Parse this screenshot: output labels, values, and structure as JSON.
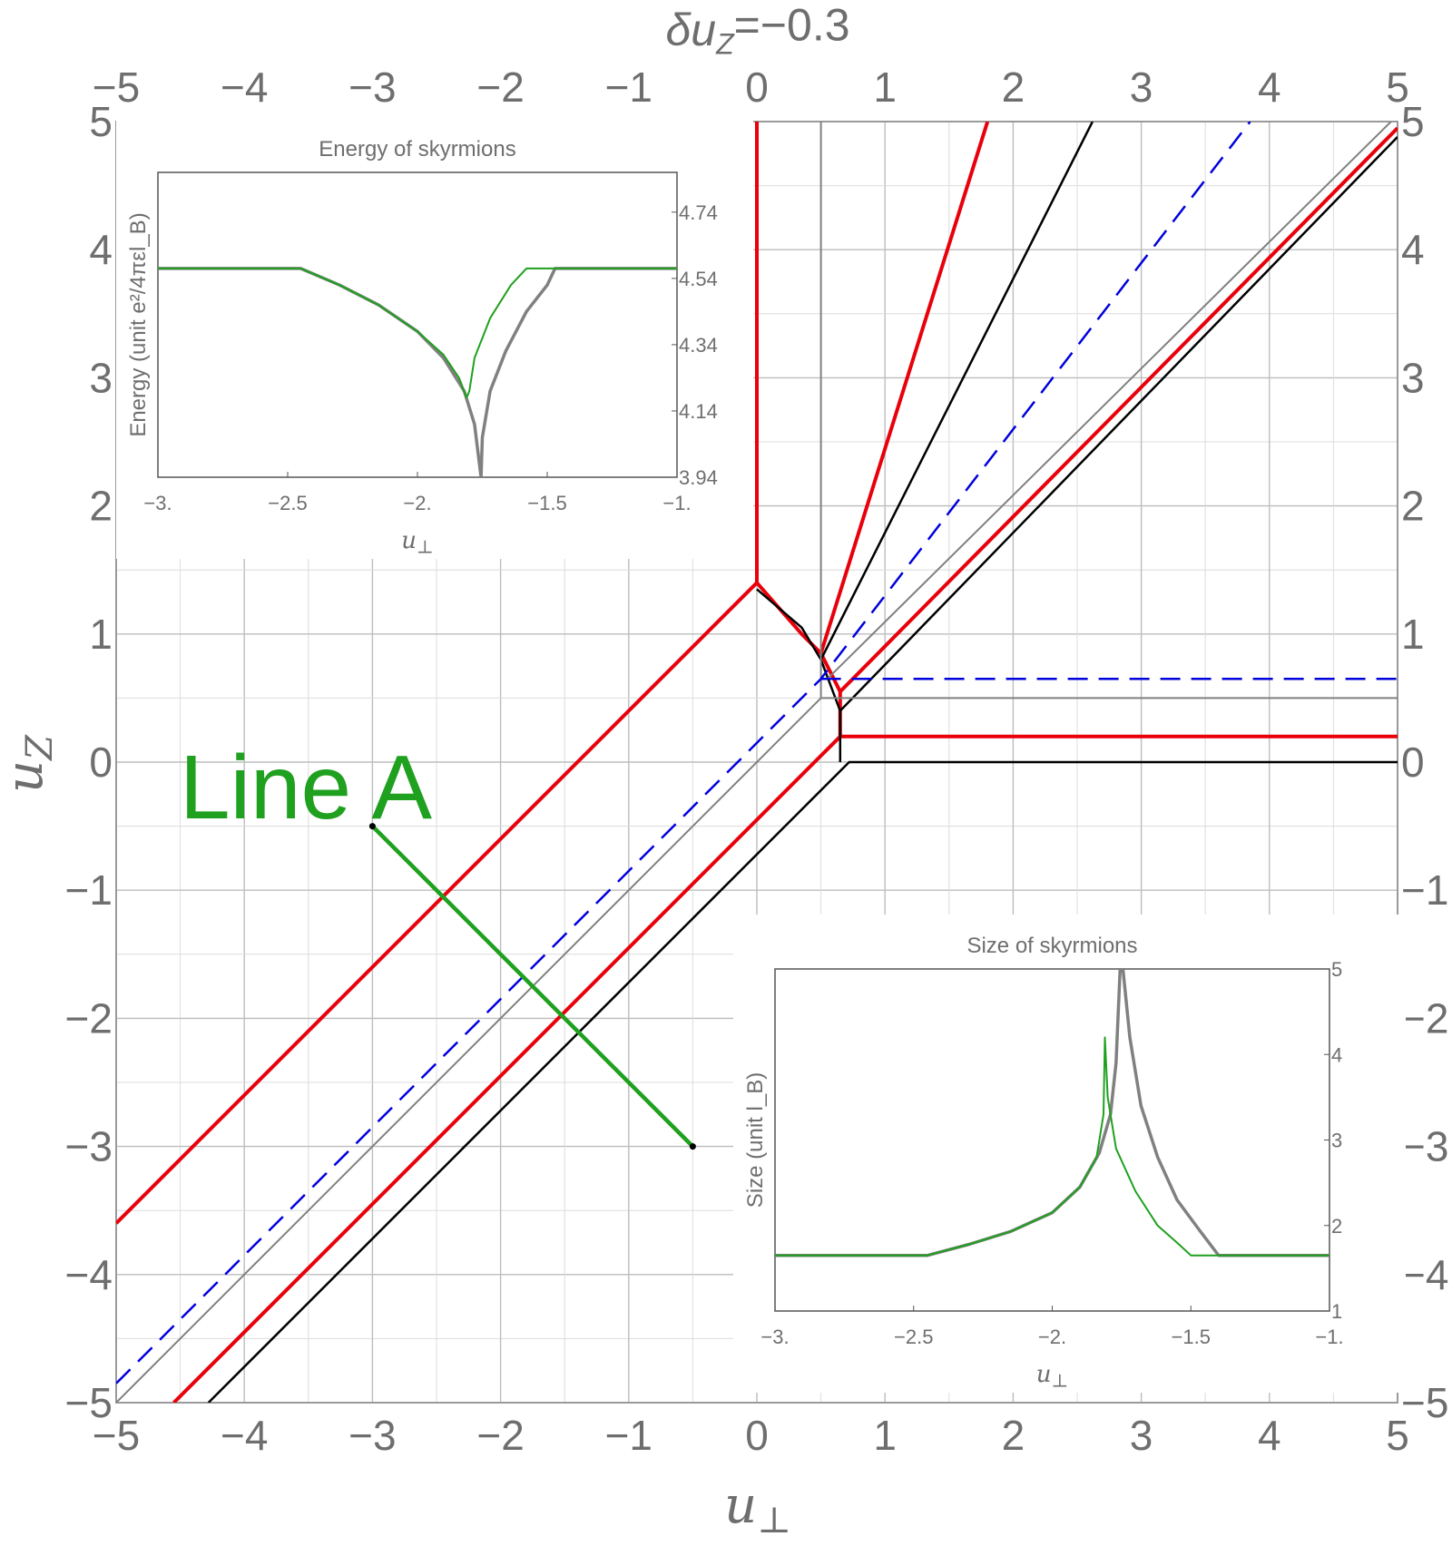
{
  "chart_data": {
    "main": {
      "type": "line",
      "title": "δu_Z=−0.3",
      "title_base": "δu",
      "title_sub": "Z",
      "title_rest": "=−0.3",
      "xlabel": "u",
      "xlabel_sub": "⊥",
      "ylabel": "u",
      "ylabel_sub": "Z",
      "xlim": [
        -5,
        5
      ],
      "ylim": [
        -5,
        5
      ],
      "grid": true,
      "x_ticks": [
        "−5",
        "−4",
        "−3",
        "−2",
        "−1",
        "0",
        "1",
        "2",
        "3",
        "4",
        "5"
      ],
      "y_ticks": [
        "−5",
        "−4",
        "−3",
        "−2",
        "−1",
        "0",
        "1",
        "2",
        "3",
        "4",
        "5"
      ],
      "colors": {
        "red": "#e8000b",
        "black": "#000000",
        "gray": "#808080",
        "blue": "#0000dd",
        "green": "#1fa01f",
        "lightgray": "#8a8a9a"
      },
      "series": [
        {
          "color": "red",
          "width": 4,
          "points": [
            [
              -5,
              -3.6
            ],
            [
              0,
              1.4
            ],
            [
              0,
              5
            ]
          ]
        },
        {
          "color": "red",
          "width": 4,
          "points": [
            [
              -4.55,
              -5
            ],
            [
              0.65,
              0.2
            ],
            [
              0.65,
              0.55
            ],
            [
              0.5,
              0.85
            ],
            [
              1.8,
              5
            ]
          ]
        },
        {
          "color": "red",
          "width": 4,
          "points": [
            [
              0.65,
              0.2
            ],
            [
              5,
              0.2
            ]
          ]
        },
        {
          "color": "red",
          "width": 4,
          "points": [
            [
              0.65,
              0.55
            ],
            [
              5,
              4.95
            ]
          ]
        },
        {
          "color": "red",
          "width": 4,
          "points": [
            [
              0,
              1.4
            ],
            [
              0.35,
              1.0
            ],
            [
              0.5,
              0.85
            ]
          ]
        },
        {
          "color": "black",
          "width": 2.5,
          "points": [
            [
              -4.28,
              -5
            ],
            [
              0.72,
              0
            ],
            [
              5,
              0
            ]
          ]
        },
        {
          "color": "black",
          "width": 2.5,
          "points": [
            [
              0.65,
              0
            ],
            [
              0.65,
              0.4
            ],
            [
              0.5,
              0.8
            ],
            [
              0.35,
              1.05
            ],
            [
              0,
              1.35
            ]
          ]
        },
        {
          "color": "black",
          "width": 2.5,
          "points": [
            [
              0.65,
              0.4
            ],
            [
              5,
              4.88
            ]
          ]
        },
        {
          "color": "black",
          "width": 2.5,
          "points": [
            [
              0.5,
              0.8
            ],
            [
              2.62,
              5
            ]
          ]
        },
        {
          "color": "gray",
          "width": 2,
          "points": [
            [
              -5,
              -5
            ],
            [
              0.5,
              0.5
            ],
            [
              5,
              0.5
            ]
          ]
        },
        {
          "color": "gray",
          "width": 2,
          "points": [
            [
              0.5,
              0.5
            ],
            [
              0.5,
              5
            ]
          ]
        },
        {
          "color": "gray",
          "width": 2,
          "points": [
            [
              0.55,
              0.65
            ],
            [
              5,
              5.05
            ]
          ]
        },
        {
          "color": "blue",
          "width": 2.5,
          "dashed": true,
          "points": [
            [
              -5,
              -4.85
            ],
            [
              0.5,
              0.65
            ],
            [
              3.85,
              5
            ]
          ]
        },
        {
          "color": "blue",
          "width": 2.5,
          "dashed": true,
          "points": [
            [
              0.5,
              0.65
            ],
            [
              5,
              0.65
            ]
          ]
        },
        {
          "color": "green",
          "width": 4.5,
          "points": [
            [
              -3,
              -0.5
            ],
            [
              -0.5,
              -3
            ]
          ]
        }
      ],
      "annotation": "Line A"
    },
    "inset_energy": {
      "type": "line",
      "title": "Energy of skyrmions",
      "xlabel": "u",
      "xlabel_sub": "⊥",
      "ylabel": "Energy (unit e²/4πεl_B)",
      "xlim": [
        -3,
        -1
      ],
      "ylim": [
        3.94,
        4.86
      ],
      "x_ticks": [
        {
          "v": -3,
          "t": "−3."
        },
        {
          "v": -2.5,
          "t": "−2.5"
        },
        {
          "v": -2,
          "t": "−2."
        },
        {
          "v": -1.5,
          "t": "−1.5"
        },
        {
          "v": -1,
          "t": "−1."
        }
      ],
      "y_ticks": [
        {
          "v": 3.94,
          "t": "3.94"
        },
        {
          "v": 4.14,
          "t": "4.14"
        },
        {
          "v": 4.34,
          "t": "4.34"
        },
        {
          "v": 4.54,
          "t": "4.54"
        },
        {
          "v": 4.74,
          "t": "4.74"
        }
      ],
      "series": [
        {
          "color": "gray",
          "width": 3.5,
          "points": [
            [
              -3,
              4.57
            ],
            [
              -2.45,
              4.57
            ],
            [
              -2.3,
              4.52
            ],
            [
              -2.15,
              4.46
            ],
            [
              -2.0,
              4.38
            ],
            [
              -1.9,
              4.3
            ],
            [
              -1.82,
              4.2
            ],
            [
              -1.78,
              4.1
            ],
            [
              -1.755,
              3.94
            ],
            [
              -1.75,
              4.06
            ],
            [
              -1.72,
              4.2
            ],
            [
              -1.66,
              4.32
            ],
            [
              -1.58,
              4.44
            ],
            [
              -1.5,
              4.52
            ],
            [
              -1.47,
              4.57
            ],
            [
              -1,
              4.57
            ]
          ]
        },
        {
          "color": "green",
          "width": 2,
          "points": [
            [
              -3,
              4.57
            ],
            [
              -2.45,
              4.57
            ],
            [
              -2.3,
              4.52
            ],
            [
              -2.15,
              4.46
            ],
            [
              -2.0,
              4.38
            ],
            [
              -1.9,
              4.31
            ],
            [
              -1.84,
              4.24
            ],
            [
              -1.81,
              4.18
            ],
            [
              -1.8,
              4.2
            ],
            [
              -1.78,
              4.3
            ],
            [
              -1.72,
              4.42
            ],
            [
              -1.64,
              4.52
            ],
            [
              -1.58,
              4.57
            ],
            [
              -1,
              4.57
            ]
          ]
        }
      ]
    },
    "inset_size": {
      "type": "line",
      "title": "Size of skyrmions",
      "xlabel": "u",
      "xlabel_sub": "⊥",
      "ylabel": "Size (unit l_B)",
      "xlim": [
        -3,
        -1
      ],
      "ylim": [
        1,
        5
      ],
      "x_ticks": [
        {
          "v": -3,
          "t": "−3."
        },
        {
          "v": -2.5,
          "t": "−2.5"
        },
        {
          "v": -2,
          "t": "−2."
        },
        {
          "v": -1.5,
          "t": "−1.5"
        },
        {
          "v": -1,
          "t": "−1."
        }
      ],
      "y_ticks": [
        {
          "v": 1,
          "t": "1"
        },
        {
          "v": 2,
          "t": "2"
        },
        {
          "v": 3,
          "t": "3"
        },
        {
          "v": 4,
          "t": "4"
        },
        {
          "v": 5,
          "t": "5"
        }
      ],
      "series": [
        {
          "color": "gray",
          "width": 3.5,
          "points": [
            [
              -3,
              1.65
            ],
            [
              -2.45,
              1.65
            ],
            [
              -2.3,
              1.78
            ],
            [
              -2.15,
              1.93
            ],
            [
              -2.0,
              2.15
            ],
            [
              -1.9,
              2.45
            ],
            [
              -1.83,
              2.85
            ],
            [
              -1.79,
              3.3
            ],
            [
              -1.77,
              3.9
            ],
            [
              -1.755,
              5
            ],
            [
              -1.745,
              5
            ],
            [
              -1.72,
              4.2
            ],
            [
              -1.68,
              3.4
            ],
            [
              -1.62,
              2.8
            ],
            [
              -1.55,
              2.3
            ],
            [
              -1.47,
              1.95
            ],
            [
              -1.4,
              1.65
            ],
            [
              -1,
              1.65
            ]
          ]
        },
        {
          "color": "green",
          "width": 2,
          "points": [
            [
              -3,
              1.65
            ],
            [
              -2.45,
              1.65
            ],
            [
              -2.3,
              1.78
            ],
            [
              -2.15,
              1.93
            ],
            [
              -2.0,
              2.15
            ],
            [
              -1.9,
              2.45
            ],
            [
              -1.84,
              2.8
            ],
            [
              -1.815,
              3.3
            ],
            [
              -1.81,
              4.2
            ],
            [
              -1.8,
              3.5
            ],
            [
              -1.77,
              2.9
            ],
            [
              -1.7,
              2.4
            ],
            [
              -1.62,
              2.0
            ],
            [
              -1.55,
              1.8
            ],
            [
              -1.5,
              1.65
            ],
            [
              -1,
              1.65
            ]
          ]
        }
      ]
    }
  }
}
